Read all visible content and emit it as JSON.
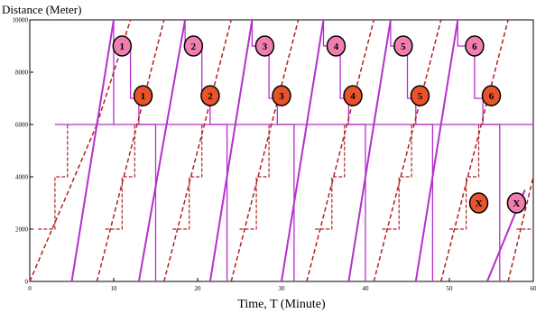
{
  "chart_data": {
    "type": "line",
    "title": "",
    "ylabel": "Distance (Meter)",
    "xlabel": "Time, T (Minute)",
    "xlim": [
      0,
      60
    ],
    "ylim": [
      0,
      10000
    ],
    "x_ticks": [
      0,
      10,
      20,
      30,
      40,
      50,
      60
    ],
    "y_ticks": [
      0,
      2000,
      4000,
      6000,
      8000,
      10000
    ],
    "grid": false,
    "colors": {
      "magenta": "#b62fcc",
      "red_dashed": "#b22222",
      "pink_badge": "#f07fb0",
      "orange_badge": "#e8542a"
    },
    "magenta_lines": [
      {
        "x": [
          5,
          10
        ],
        "y": [
          0,
          10000
        ]
      },
      {
        "x": [
          13,
          18.5
        ],
        "y": [
          0,
          10000
        ]
      },
      {
        "x": [
          21.5,
          26.5
        ],
        "y": [
          0,
          10000
        ]
      },
      {
        "x": [
          30,
          35
        ],
        "y": [
          0,
          10000
        ]
      },
      {
        "x": [
          38,
          43
        ],
        "y": [
          0,
          10000
        ]
      },
      {
        "x": [
          46,
          51
        ],
        "y": [
          0,
          10000
        ]
      },
      {
        "x": [
          54.5,
          59
        ],
        "y": [
          0,
          3500
        ]
      }
    ],
    "dashed_lines": [
      {
        "x": [
          0,
          8
        ],
        "y": [
          0,
          6000
        ]
      },
      {
        "x": [
          8,
          12
        ],
        "y": [
          6000,
          10000
        ]
      },
      {
        "x": [
          8,
          16
        ],
        "y": [
          0,
          10000
        ]
      },
      {
        "x": [
          16,
          24
        ],
        "y": [
          0,
          10000
        ]
      },
      {
        "x": [
          24,
          32
        ],
        "y": [
          0,
          10000
        ]
      },
      {
        "x": [
          33,
          41
        ],
        "y": [
          0,
          10000
        ]
      },
      {
        "x": [
          41,
          49
        ],
        "y": [
          0,
          10000
        ]
      },
      {
        "x": [
          49,
          57
        ],
        "y": [
          0,
          10000
        ]
      },
      {
        "x": [
          57,
          60
        ],
        "y": [
          0,
          4000
        ]
      }
    ],
    "magenta_steps": [
      {
        "x": [
          10,
          10,
          12,
          12,
          13,
          13,
          15,
          15
        ],
        "y": [
          10000,
          9000,
          9000,
          7000,
          7000,
          6000,
          6000,
          0
        ]
      },
      {
        "x": [
          18.5,
          18.5,
          20.5,
          20.5,
          21.5,
          21.5,
          23.5,
          23.5
        ],
        "y": [
          10000,
          9000,
          9000,
          7000,
          7000,
          6000,
          6000,
          0
        ]
      },
      {
        "x": [
          26.5,
          26.5,
          28.5,
          28.5,
          29.5,
          29.5,
          31.5,
          31.5
        ],
        "y": [
          10000,
          9000,
          9000,
          7000,
          7000,
          6000,
          6000,
          0
        ]
      },
      {
        "x": [
          35,
          35,
          37,
          37,
          38,
          38,
          40,
          40
        ],
        "y": [
          10000,
          9000,
          9000,
          7000,
          7000,
          6000,
          6000,
          0
        ]
      },
      {
        "x": [
          43,
          43,
          45,
          45,
          46,
          46,
          48,
          48
        ],
        "y": [
          10000,
          9000,
          9000,
          7000,
          7000,
          6000,
          6000,
          0
        ]
      },
      {
        "x": [
          51,
          51,
          53,
          53,
          54,
          54,
          56,
          56
        ],
        "y": [
          10000,
          9000,
          9000,
          7000,
          7000,
          6000,
          6000,
          0
        ]
      },
      {
        "x": [
          3,
          60
        ],
        "y": [
          6000,
          6000
        ]
      },
      {
        "x": [
          10,
          10,
          10
        ],
        "y": [
          6000,
          8000,
          9000
        ]
      }
    ],
    "dashed_steps": [
      {
        "x": [
          1,
          1,
          3,
          3,
          4.5,
          4.5
        ],
        "y": [
          2000,
          2000,
          2000,
          4000,
          4000,
          6000
        ]
      },
      {
        "x": [
          9,
          9,
          11,
          11,
          12.5,
          12.5
        ],
        "y": [
          2000,
          2000,
          2000,
          4000,
          4000,
          6000
        ]
      },
      {
        "x": [
          17,
          17,
          19,
          19,
          20.5,
          20.5
        ],
        "y": [
          2000,
          2000,
          2000,
          4000,
          4000,
          6000
        ]
      },
      {
        "x": [
          25,
          25,
          27,
          27,
          28.5,
          28.5
        ],
        "y": [
          2000,
          2000,
          2000,
          4000,
          4000,
          6000
        ]
      },
      {
        "x": [
          34,
          34,
          36,
          36,
          37.5,
          37.5
        ],
        "y": [
          2000,
          2000,
          2000,
          4000,
          4000,
          6000
        ]
      },
      {
        "x": [
          42,
          42,
          44,
          44,
          45.5,
          45.5
        ],
        "y": [
          2000,
          2000,
          2000,
          4000,
          4000,
          6000
        ]
      },
      {
        "x": [
          50,
          50,
          52,
          52,
          53.5,
          53.5
        ],
        "y": [
          2000,
          2000,
          2000,
          4000,
          4000,
          6000
        ]
      },
      {
        "x": [
          58,
          58,
          60
        ],
        "y": [
          2000,
          2000,
          2000
        ]
      }
    ],
    "annotations_pink": [
      {
        "label": "1",
        "x": 11,
        "y": 9000
      },
      {
        "label": "2",
        "x": 19.5,
        "y": 9000
      },
      {
        "label": "3",
        "x": 28,
        "y": 9000
      },
      {
        "label": "4",
        "x": 36.5,
        "y": 9000
      },
      {
        "label": "5",
        "x": 44.5,
        "y": 9000
      },
      {
        "label": "6",
        "x": 53,
        "y": 9000
      },
      {
        "label": "X",
        "x": 58,
        "y": 3000
      }
    ],
    "annotations_orange": [
      {
        "label": "1",
        "x": 13.5,
        "y": 7100
      },
      {
        "label": "2",
        "x": 21.5,
        "y": 7100
      },
      {
        "label": "3",
        "x": 30,
        "y": 7100
      },
      {
        "label": "4",
        "x": 38.5,
        "y": 7100
      },
      {
        "label": "5",
        "x": 46.5,
        "y": 7100
      },
      {
        "label": "6",
        "x": 55,
        "y": 7100
      },
      {
        "label": "X",
        "x": 53.5,
        "y": 3000
      }
    ]
  }
}
